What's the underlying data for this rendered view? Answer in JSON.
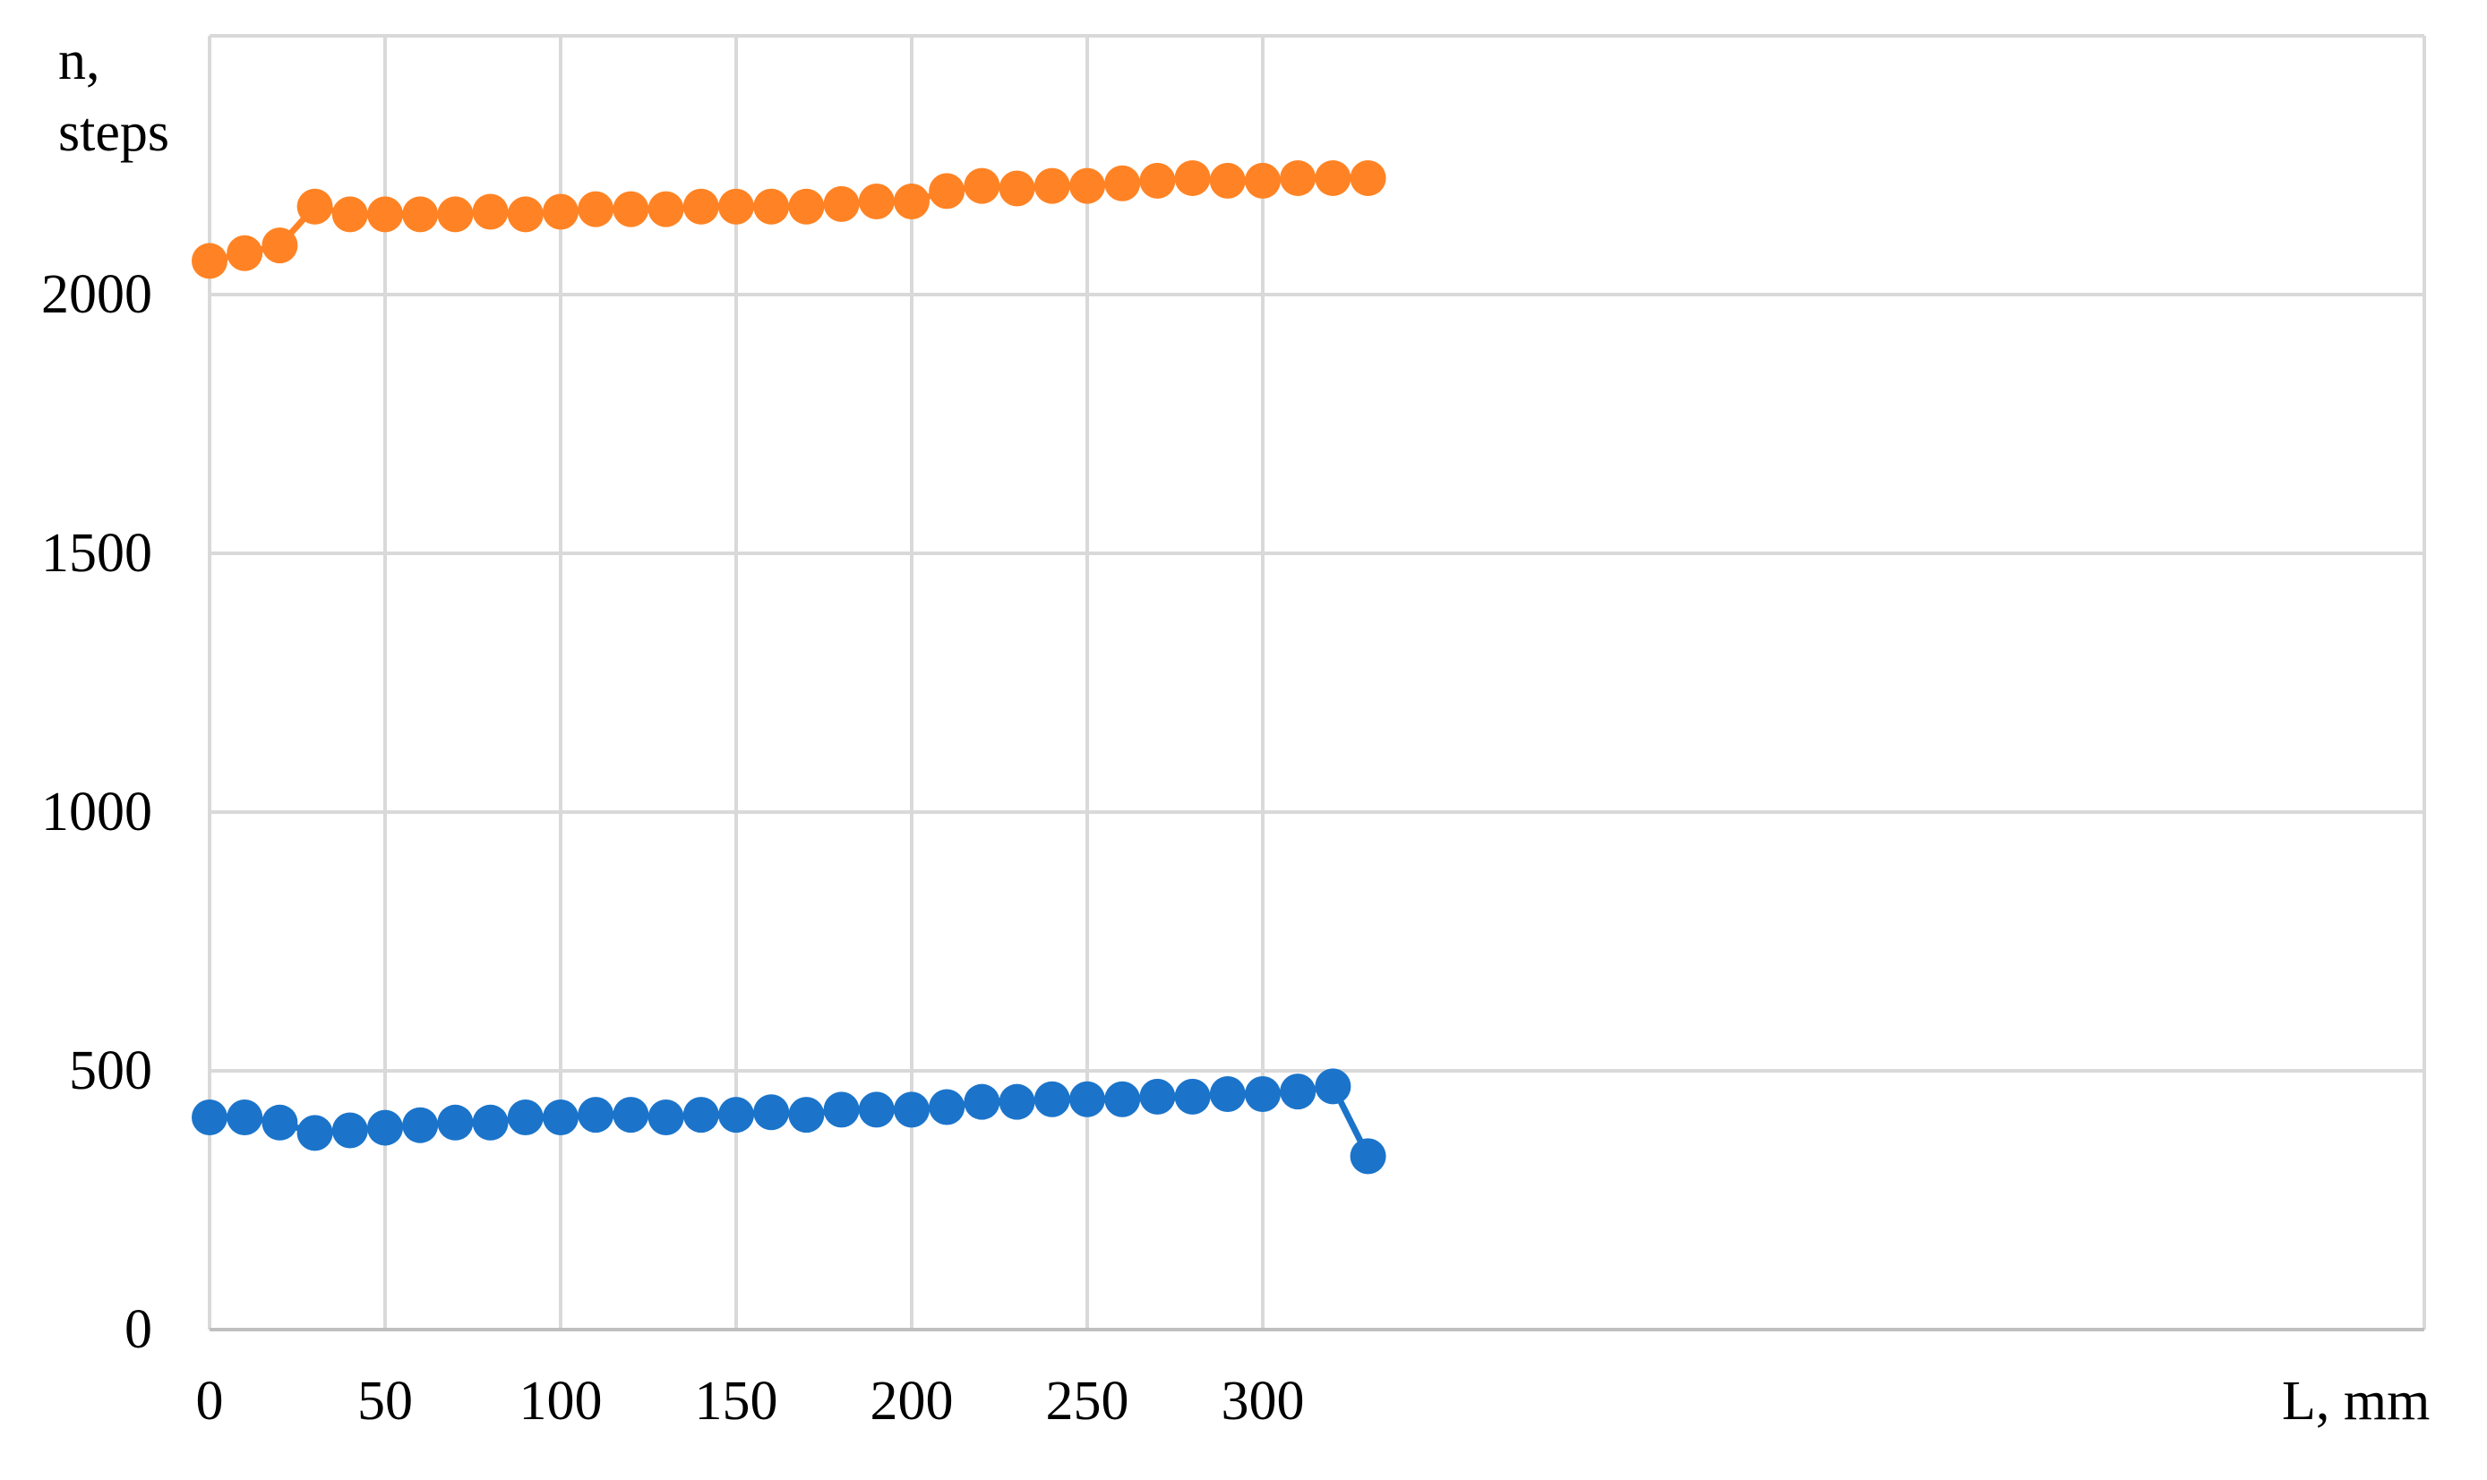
{
  "chart_data": {
    "type": "line",
    "title": "",
    "ylabel_line1": "n,",
    "ylabel_line2": "steps",
    "xlabel": "L, mm",
    "xlim": [
      0,
      350
    ],
    "ylim": [
      0,
      2500
    ],
    "x_ticks": [
      "0",
      "50",
      "100",
      "150",
      "200",
      "250",
      "300"
    ],
    "y_ticks": [
      "0",
      "500",
      "1000",
      "1500",
      "2000"
    ],
    "grid": true,
    "legend": "none",
    "x": [
      0,
      10,
      20,
      30,
      40,
      50,
      60,
      70,
      80,
      90,
      100,
      110,
      120,
      130,
      140,
      150,
      160,
      170,
      180,
      190,
      200,
      210,
      220,
      230,
      240,
      250,
      260,
      270,
      280,
      290,
      300,
      310,
      320,
      330
    ],
    "series": [
      {
        "color": "#FF8324",
        "values": [
          2065,
          2080,
          2095,
          2170,
          2155,
          2155,
          2155,
          2155,
          2160,
          2155,
          2160,
          2165,
          2165,
          2165,
          2170,
          2170,
          2170,
          2170,
          2175,
          2180,
          2180,
          2200,
          2210,
          2205,
          2210,
          2210,
          2215,
          2220,
          2225,
          2220,
          2220,
          2225,
          2225,
          2225
        ]
      },
      {
        "color": "#1B74CA",
        "values": [
          410,
          410,
          400,
          380,
          385,
          390,
          395,
          400,
          400,
          410,
          410,
          415,
          415,
          410,
          415,
          415,
          420,
          415,
          425,
          425,
          425,
          430,
          440,
          440,
          445,
          445,
          445,
          450,
          450,
          455,
          455,
          460,
          470,
          335
        ]
      }
    ]
  }
}
